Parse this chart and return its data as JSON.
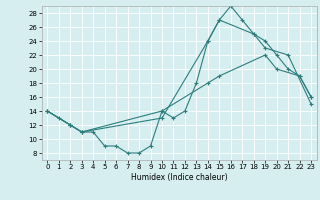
{
  "title": "",
  "xlabel": "Humidex (Indice chaleur)",
  "xlim": [
    -0.5,
    23.5
  ],
  "ylim": [
    7,
    29
  ],
  "yticks": [
    8,
    10,
    12,
    14,
    16,
    18,
    20,
    22,
    24,
    26,
    28
  ],
  "xticks": [
    0,
    1,
    2,
    3,
    4,
    5,
    6,
    7,
    8,
    9,
    10,
    11,
    12,
    13,
    14,
    15,
    16,
    17,
    18,
    19,
    20,
    21,
    22,
    23
  ],
  "bg_color": "#d6eef0",
  "line_color": "#2d7d7d",
  "line1_x": [
    0,
    1,
    2,
    3,
    4,
    5,
    6,
    7,
    8,
    9,
    10,
    11,
    12,
    13,
    14,
    15,
    16,
    17,
    18,
    19,
    20,
    21,
    22,
    23
  ],
  "line1_y": [
    14,
    13,
    12,
    11,
    11,
    9,
    9,
    8,
    8,
    9,
    14,
    13,
    14,
    18,
    24,
    27,
    29,
    27,
    25,
    24,
    22,
    20,
    19,
    16
  ],
  "line2_x": [
    0,
    2,
    3,
    10,
    14,
    15,
    19,
    20,
    22,
    23
  ],
  "line2_y": [
    14,
    12,
    11,
    14,
    18,
    19,
    22,
    20,
    19,
    16
  ],
  "line3_x": [
    0,
    2,
    3,
    10,
    14,
    15,
    18,
    19,
    21,
    23
  ],
  "line3_y": [
    14,
    12,
    11,
    13,
    24,
    27,
    25,
    23,
    22,
    15
  ]
}
